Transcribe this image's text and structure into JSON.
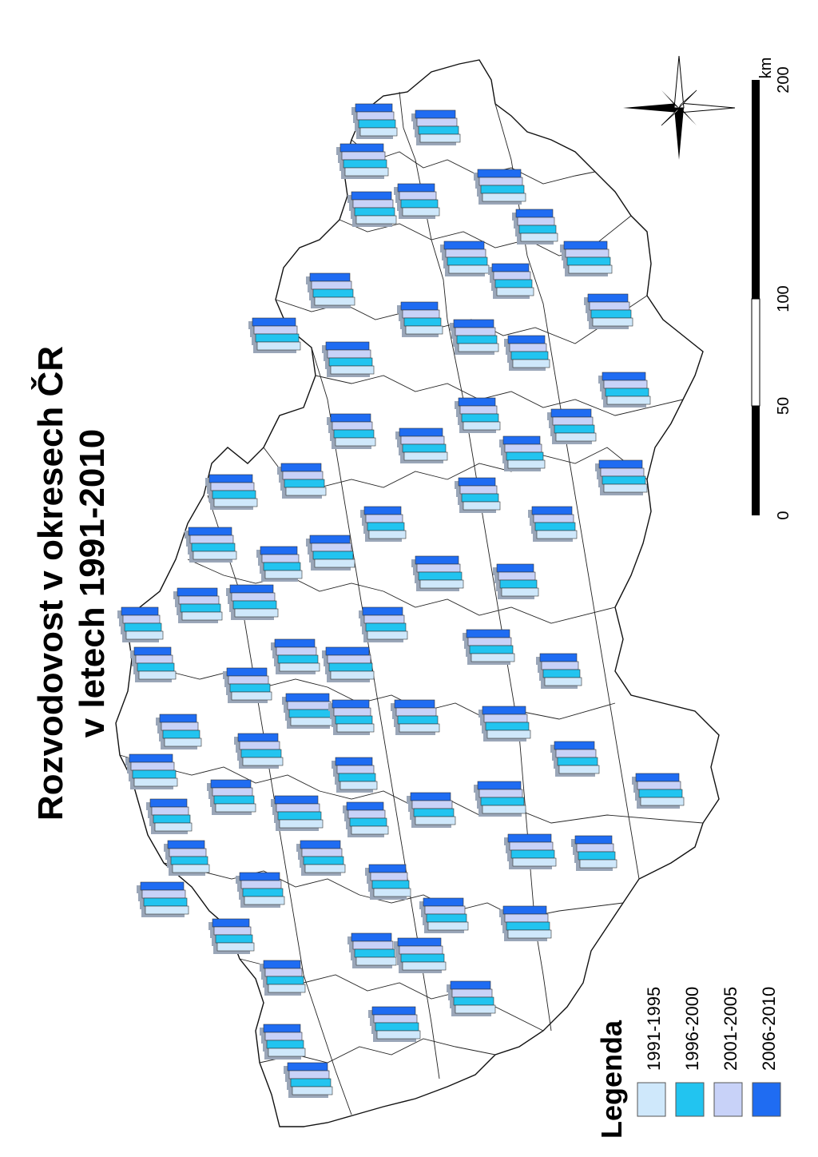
{
  "title": {
    "line1": "Rozvodovost v okresech ČR",
    "line2": "v letech 1991-2010"
  },
  "legend": {
    "heading": "Legenda",
    "items": [
      {
        "label": "1991-1995",
        "color": "#cfe8fb"
      },
      {
        "label": "1996-2000",
        "color": "#22c4f0"
      },
      {
        "label": "2001-2005",
        "color": "#c8d2f8"
      },
      {
        "label": "2006-2010",
        "color": "#1f6cf2"
      }
    ]
  },
  "scale": {
    "unit": "km",
    "ticks": [
      "0",
      "50",
      "100",
      "200"
    ]
  },
  "compass": {
    "icon": "compass-rose-icon"
  },
  "colors": {
    "c1991": "#cfe8fb",
    "c1996": "#22c4f0",
    "c2001": "#c8d2f8",
    "c2006": "#1f6cf2",
    "border": "#111111"
  }
}
